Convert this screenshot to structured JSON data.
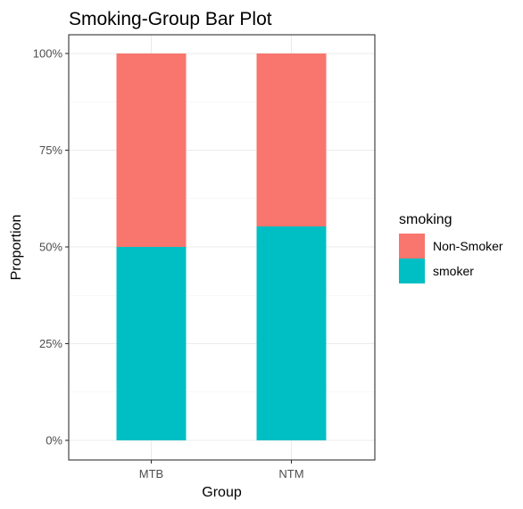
{
  "chart_data": {
    "type": "bar",
    "stacked": true,
    "title": "Smoking-Group Bar Plot",
    "xlabel": "Group",
    "ylabel": "Proportion",
    "categories": [
      "MTB",
      "NTM"
    ],
    "series": [
      {
        "name": "smoker",
        "values": [
          0.5,
          0.553
        ],
        "color": "#00BFC4"
      },
      {
        "name": "Non-Smoker",
        "values": [
          0.5,
          0.447
        ],
        "color": "#F8766D"
      }
    ],
    "ylim": [
      0,
      1
    ],
    "yticks": [
      0,
      0.25,
      0.5,
      0.75,
      1
    ],
    "ytick_labels": [
      "0%",
      "25%",
      "50%",
      "75%",
      "100%"
    ],
    "grid": true,
    "legend": {
      "title": "smoking",
      "position": "right",
      "entries": [
        {
          "label": "Non-Smoker",
          "color": "#F8766D"
        },
        {
          "label": "smoker",
          "color": "#00BFC4"
        }
      ]
    }
  }
}
